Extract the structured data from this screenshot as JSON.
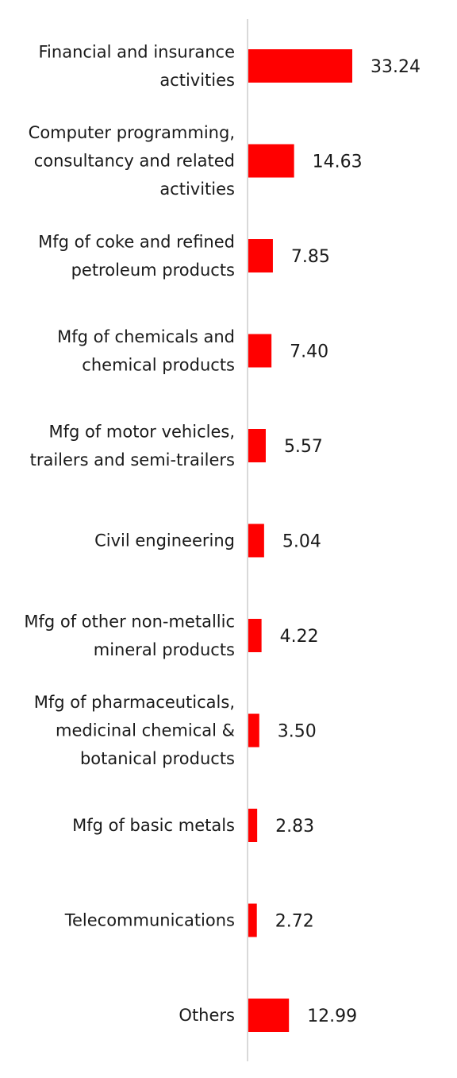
{
  "chart_data": {
    "type": "bar",
    "orientation": "horizontal",
    "categories": [
      [
        "Financial and insurance",
        "activities"
      ],
      [
        "Computer programming,",
        "consultancy and related",
        "activities"
      ],
      [
        "Mfg of coke and refined",
        "petroleum products"
      ],
      [
        "Mfg of chemicals and",
        "chemical products"
      ],
      [
        "Mfg of motor vehicles,",
        "trailers and semi-trailers"
      ],
      [
        "Civil engineering"
      ],
      [
        "Mfg of other non-metallic",
        "mineral products"
      ],
      [
        "Mfg of pharmaceuticals,",
        "medicinal chemical &",
        "botanical products"
      ],
      [
        "Mfg of basic metals"
      ],
      [
        "Telecommunications"
      ],
      [
        "Others"
      ]
    ],
    "values": [
      33.24,
      14.63,
      7.85,
      7.4,
      5.57,
      5.04,
      4.22,
      3.5,
      2.83,
      2.72,
      12.99
    ],
    "value_labels": [
      "33.24",
      "14.63",
      "7.85",
      "7.40",
      "5.57",
      "5.04",
      "4.22",
      "3.50",
      "2.83",
      "2.72",
      "12.99"
    ],
    "title": "",
    "xlabel": "",
    "ylabel": "",
    "grid": false,
    "legend": "none",
    "bar_color": "#ff0000",
    "axis_color": "#d9d9d9"
  }
}
